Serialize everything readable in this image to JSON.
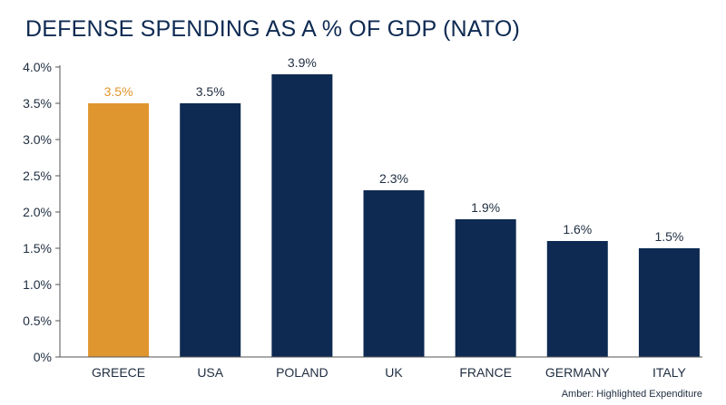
{
  "chart_data": {
    "type": "bar",
    "title": "DEFENSE SPENDING AS A % OF GDP (NATO)",
    "categories": [
      "GREECE",
      "USA",
      "POLAND",
      "UK",
      "FRANCE",
      "GERMANY",
      "ITALY"
    ],
    "values": [
      3.5,
      3.5,
      3.9,
      2.3,
      1.9,
      1.6,
      1.5
    ],
    "value_labels": [
      "3.5%",
      "3.5%",
      "3.9%",
      "2.3%",
      "1.9%",
      "1.6%",
      "1.5%"
    ],
    "highlighted_index": 0,
    "ylim": [
      0,
      4.0
    ],
    "yticks": [
      0,
      0.5,
      1.0,
      1.5,
      2.0,
      2.5,
      3.0,
      3.5,
      4.0
    ],
    "ytick_labels": [
      "0%",
      "0.5%",
      "1.0%",
      "1.5%",
      "2.0%",
      "2.5%",
      "3.0%",
      "3.5%",
      "4.0%"
    ],
    "xlabel": "",
    "ylabel": "",
    "grid": false,
    "colors": {
      "bar": "#0e2a52",
      "highlight": "#e0962e",
      "axis": "#555555"
    },
    "footnote": "Amber: Highlighted Expenditure"
  }
}
